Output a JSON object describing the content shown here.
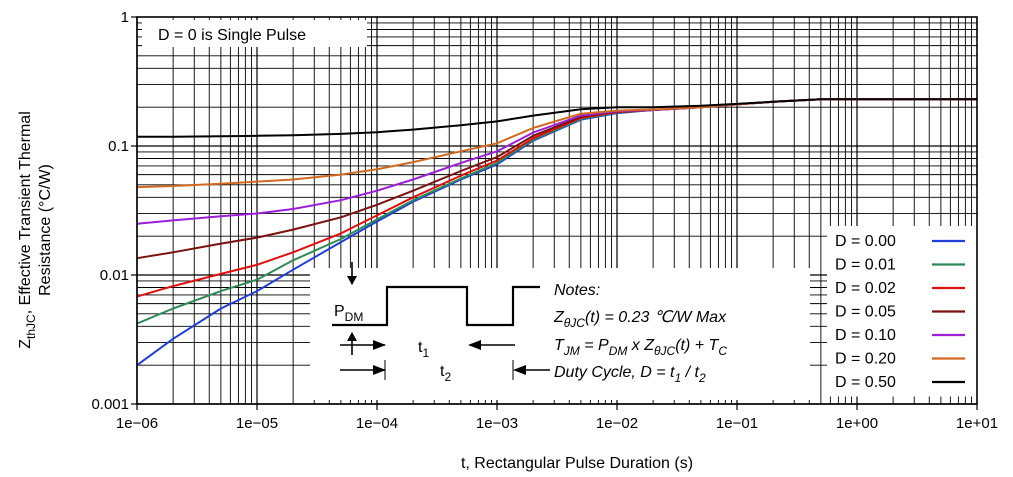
{
  "chart_data": {
    "type": "line",
    "title": "",
    "xlabel": "t, Rectangular Pulse Duration (s)",
    "ylabel_line1": "Z",
    "ylabel_sub": "thJC",
    "ylabel_line1_rest": ", Effective Transient Thermal",
    "ylabel_line2": "Resistance (°C/W)",
    "x_scale": "log",
    "y_scale": "log",
    "xlim": [
      1e-06,
      10
    ],
    "ylim": [
      0.001,
      1
    ],
    "grid": true,
    "x_ticks": [
      "1e−06",
      "1e−05",
      "1e−04",
      "1e−03",
      "1e−02",
      "1e−01",
      "1e+00",
      "1e+01"
    ],
    "y_ticks": [
      "0.001",
      "0.01",
      "0.1",
      "1"
    ],
    "annotation_top": "D = 0 is Single Pulse",
    "legend_position": "right",
    "series": [
      {
        "name": "D = 0.00",
        "color": "#1f3fd6",
        "x": [
          1e-06,
          2e-06,
          5e-06,
          1e-05,
          2e-05,
          5e-05,
          0.0001,
          0.0002,
          0.0005,
          0.001,
          0.002,
          0.005,
          0.01,
          0.02,
          0.05,
          0.1,
          0.2,
          0.5,
          1,
          10
        ],
        "y": [
          0.002,
          0.0032,
          0.0055,
          0.0075,
          0.011,
          0.018,
          0.026,
          0.037,
          0.055,
          0.072,
          0.11,
          0.16,
          0.18,
          0.19,
          0.2,
          0.21,
          0.22,
          0.23,
          0.23,
          0.23
        ]
      },
      {
        "name": "D = 0.01",
        "color": "#2e8b57",
        "x": [
          1e-06,
          2e-06,
          5e-06,
          1e-05,
          2e-05,
          5e-05,
          0.0001,
          0.0002,
          0.0005,
          0.001,
          0.002,
          0.005,
          0.01,
          0.02,
          0.05,
          0.1,
          0.2,
          0.5,
          1,
          10
        ],
        "y": [
          0.0042,
          0.0055,
          0.0075,
          0.0092,
          0.013,
          0.019,
          0.027,
          0.038,
          0.056,
          0.074,
          0.112,
          0.162,
          0.182,
          0.19,
          0.2,
          0.21,
          0.22,
          0.23,
          0.23,
          0.23
        ]
      },
      {
        "name": "D = 0.02",
        "color": "#e01010",
        "x": [
          1e-06,
          2e-06,
          5e-06,
          1e-05,
          2e-05,
          5e-05,
          0.0001,
          0.0002,
          0.0005,
          0.001,
          0.002,
          0.005,
          0.01,
          0.02,
          0.05,
          0.1,
          0.2,
          0.5,
          1,
          10
        ],
        "y": [
          0.0068,
          0.0082,
          0.0102,
          0.012,
          0.015,
          0.021,
          0.029,
          0.04,
          0.059,
          0.077,
          0.115,
          0.165,
          0.183,
          0.19,
          0.2,
          0.21,
          0.22,
          0.23,
          0.23,
          0.23
        ]
      },
      {
        "name": "D = 0.05",
        "color": "#7b1010",
        "x": [
          1e-06,
          2e-06,
          5e-06,
          1e-05,
          2e-05,
          5e-05,
          0.0001,
          0.0002,
          0.0005,
          0.001,
          0.002,
          0.005,
          0.01,
          0.02,
          0.05,
          0.1,
          0.2,
          0.5,
          1,
          10
        ],
        "y": [
          0.0135,
          0.015,
          0.0175,
          0.0195,
          0.0225,
          0.028,
          0.035,
          0.045,
          0.064,
          0.082,
          0.12,
          0.168,
          0.185,
          0.19,
          0.2,
          0.21,
          0.22,
          0.23,
          0.23,
          0.23
        ]
      },
      {
        "name": "D = 0.10",
        "color": "#9b1fd6",
        "x": [
          1e-06,
          2e-06,
          5e-06,
          1e-05,
          2e-05,
          5e-05,
          0.0001,
          0.0002,
          0.0005,
          0.001,
          0.002,
          0.005,
          0.01,
          0.02,
          0.05,
          0.1,
          0.2,
          0.5,
          1,
          10
        ],
        "y": [
          0.025,
          0.0265,
          0.0285,
          0.03,
          0.0325,
          0.038,
          0.045,
          0.055,
          0.074,
          0.091,
          0.127,
          0.172,
          0.186,
          0.19,
          0.2,
          0.21,
          0.22,
          0.23,
          0.23,
          0.23
        ]
      },
      {
        "name": "D = 0.20",
        "color": "#d2691e",
        "x": [
          1e-06,
          2e-06,
          5e-06,
          1e-05,
          2e-05,
          5e-05,
          0.0001,
          0.0002,
          0.0005,
          0.001,
          0.002,
          0.005,
          0.01,
          0.02,
          0.05,
          0.1,
          0.2,
          0.5,
          1,
          10
        ],
        "y": [
          0.048,
          0.049,
          0.051,
          0.053,
          0.055,
          0.06,
          0.066,
          0.075,
          0.091,
          0.105,
          0.138,
          0.178,
          0.188,
          0.192,
          0.2,
          0.21,
          0.22,
          0.23,
          0.23,
          0.23
        ]
      },
      {
        "name": "D = 0.50",
        "color": "#000000",
        "x": [
          1e-06,
          2e-06,
          5e-06,
          1e-05,
          2e-05,
          5e-05,
          0.0001,
          0.0002,
          0.0005,
          0.001,
          0.002,
          0.005,
          0.01,
          0.02,
          0.05,
          0.1,
          0.2,
          0.5,
          1,
          10
        ],
        "y": [
          0.118,
          0.118,
          0.119,
          0.12,
          0.121,
          0.124,
          0.128,
          0.134,
          0.145,
          0.155,
          0.172,
          0.193,
          0.2,
          0.2,
          0.205,
          0.212,
          0.22,
          0.23,
          0.23,
          0.23
        ]
      }
    ],
    "notes": {
      "title": "Notes:",
      "line1_main": "Z",
      "line1_sub": "θJC",
      "line1_rest": "(t) = 0.23 ℃/W Max",
      "line2_a": "T",
      "line2_a_sub": "JM",
      "line2_b": " = P",
      "line2_b_sub": "DM",
      "line2_c": " x Z",
      "line2_c_sub": "θJC",
      "line2_d": "(t) + T",
      "line2_d_sub": "C",
      "line3_a": "Duty Cycle, D = t",
      "line3_a_sub": "1",
      "line3_b": " / t",
      "line3_b_sub": "2"
    },
    "inset": {
      "pdm_main": "P",
      "pdm_sub": "DM",
      "t1_main": "t",
      "t1_sub": "1",
      "t2_main": "t",
      "t2_sub": "2"
    }
  }
}
